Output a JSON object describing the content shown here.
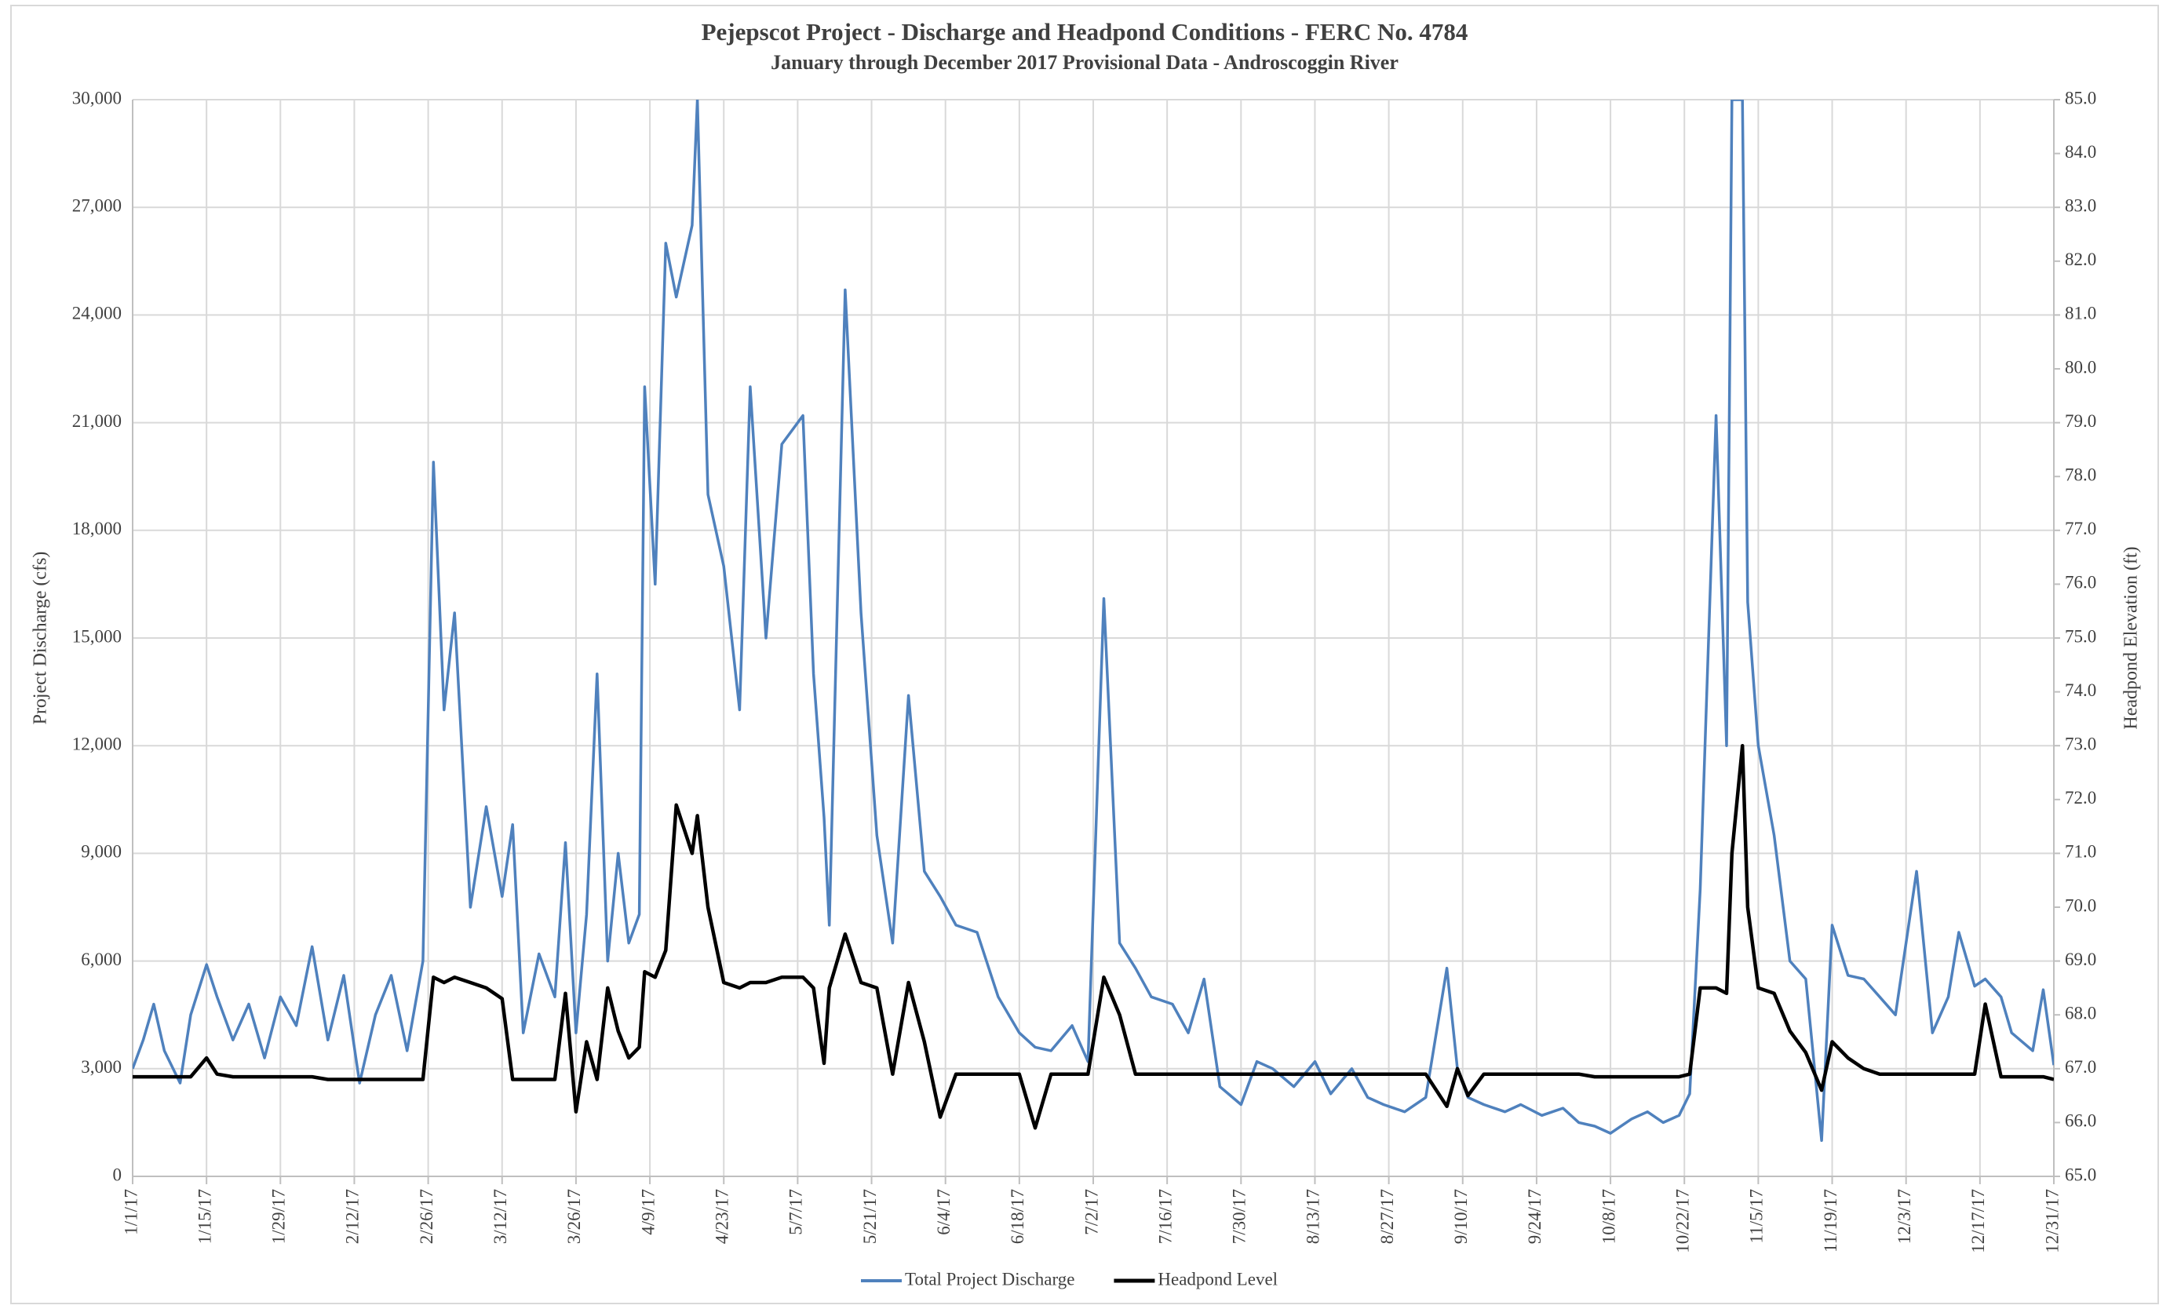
{
  "chart_data": {
    "type": "line",
    "title": "Pejepscot Project - Discharge and Headpond Conditions - FERC No. 4784",
    "subtitle": "January through December 2017 Provisional Data - Androscoggin River",
    "ylabel": "Project Discharge (cfs)",
    "y2label": "Headpond Elevation (ft)",
    "x": [
      "2017-01-01",
      "2017-01-03",
      "2017-01-05",
      "2017-01-07",
      "2017-01-10",
      "2017-01-12",
      "2017-01-15",
      "2017-01-17",
      "2017-01-20",
      "2017-01-23",
      "2017-01-26",
      "2017-01-29",
      "2017-02-01",
      "2017-02-04",
      "2017-02-07",
      "2017-02-10",
      "2017-02-13",
      "2017-02-16",
      "2017-02-19",
      "2017-02-22",
      "2017-02-25",
      "2017-02-27",
      "2017-03-01",
      "2017-03-03",
      "2017-03-06",
      "2017-03-09",
      "2017-03-12",
      "2017-03-14",
      "2017-03-16",
      "2017-03-19",
      "2017-03-22",
      "2017-03-24",
      "2017-03-26",
      "2017-03-28",
      "2017-03-30",
      "2017-04-01",
      "2017-04-03",
      "2017-04-05",
      "2017-04-07",
      "2017-04-08",
      "2017-04-10",
      "2017-04-12",
      "2017-04-14",
      "2017-04-17",
      "2017-04-18",
      "2017-04-20",
      "2017-04-23",
      "2017-04-26",
      "2017-04-28",
      "2017-05-01",
      "2017-05-04",
      "2017-05-08",
      "2017-05-10",
      "2017-05-12",
      "2017-05-13",
      "2017-05-16",
      "2017-05-19",
      "2017-05-22",
      "2017-05-25",
      "2017-05-28",
      "2017-05-31",
      "2017-06-03",
      "2017-06-06",
      "2017-06-10",
      "2017-06-14",
      "2017-06-18",
      "2017-06-21",
      "2017-06-24",
      "2017-06-28",
      "2017-07-01",
      "2017-07-04",
      "2017-07-07",
      "2017-07-10",
      "2017-07-13",
      "2017-07-17",
      "2017-07-20",
      "2017-07-23",
      "2017-07-26",
      "2017-07-30",
      "2017-08-02",
      "2017-08-05",
      "2017-08-09",
      "2017-08-13",
      "2017-08-16",
      "2017-08-20",
      "2017-08-23",
      "2017-08-26",
      "2017-08-30",
      "2017-09-03",
      "2017-09-07",
      "2017-09-09",
      "2017-09-11",
      "2017-09-14",
      "2017-09-18",
      "2017-09-21",
      "2017-09-25",
      "2017-09-29",
      "2017-10-02",
      "2017-10-05",
      "2017-10-08",
      "2017-10-12",
      "2017-10-15",
      "2017-10-18",
      "2017-10-21",
      "2017-10-23",
      "2017-10-25",
      "2017-10-28",
      "2017-10-30",
      "2017-10-31",
      "2017-11-02",
      "2017-11-03",
      "2017-11-05",
      "2017-11-08",
      "2017-11-11",
      "2017-11-14",
      "2017-11-17",
      "2017-11-19",
      "2017-11-22",
      "2017-11-25",
      "2017-11-28",
      "2017-12-01",
      "2017-12-05",
      "2017-12-08",
      "2017-12-11",
      "2017-12-13",
      "2017-12-16",
      "2017-12-18",
      "2017-12-21",
      "2017-12-23",
      "2017-12-27",
      "2017-12-29",
      "2017-12-31"
    ],
    "series": [
      {
        "name": "Total Project Discharge",
        "color": "#4f81bd",
        "axis": "y",
        "values": [
          3000,
          3800,
          4800,
          3500,
          2600,
          4500,
          5900,
          5000,
          3800,
          4800,
          3300,
          5000,
          4200,
          6400,
          3800,
          5600,
          2600,
          4500,
          5600,
          3500,
          6000,
          19900,
          13000,
          15700,
          7500,
          10300,
          7800,
          9800,
          4000,
          6200,
          5000,
          9300,
          4000,
          7300,
          14000,
          6000,
          9000,
          6500,
          7300,
          22000,
          16500,
          26000,
          24500,
          26500,
          30000,
          19000,
          17000,
          13000,
          22000,
          15000,
          20400,
          21200,
          14000,
          10000,
          7000,
          24700,
          15700,
          9500,
          6500,
          13400,
          8500,
          7800,
          7000,
          6800,
          5000,
          4000,
          3600,
          3500,
          4200,
          3200,
          16100,
          6500,
          5800,
          5000,
          4800,
          4000,
          5500,
          2500,
          2000,
          3200,
          3000,
          2500,
          3200,
          2300,
          3000,
          2200,
          2000,
          1800,
          2200,
          5800,
          3000,
          2200,
          2000,
          1800,
          2000,
          1700,
          1900,
          1500,
          1400,
          1200,
          1600,
          1800,
          1500,
          1700,
          2300,
          8000,
          21200,
          12000,
          30000,
          30000,
          16000,
          12000,
          9500,
          6000,
          5500,
          1000,
          7000,
          5600,
          5500,
          5000,
          4500,
          8500,
          4000,
          5000,
          6800,
          5300,
          5500,
          5000,
          4000,
          3500,
          5200,
          3100
        ]
      },
      {
        "name": "Headpond Level",
        "color": "#000000",
        "axis": "y2",
        "values": [
          66.85,
          66.85,
          66.85,
          66.85,
          66.85,
          66.85,
          67.2,
          66.9,
          66.85,
          66.85,
          66.85,
          66.85,
          66.85,
          66.85,
          66.8,
          66.8,
          66.8,
          66.8,
          66.8,
          66.8,
          66.8,
          68.7,
          68.6,
          68.7,
          68.6,
          68.5,
          68.3,
          66.8,
          66.8,
          66.8,
          66.8,
          68.4,
          66.2,
          67.5,
          66.8,
          68.5,
          67.7,
          67.2,
          67.4,
          68.8,
          68.7,
          69.2,
          71.9,
          71.0,
          71.7,
          70.0,
          68.6,
          68.5,
          68.6,
          68.6,
          68.7,
          68.7,
          68.5,
          67.1,
          68.5,
          69.5,
          68.6,
          68.5,
          66.9,
          68.6,
          67.5,
          66.1,
          66.9,
          66.9,
          66.9,
          66.9,
          65.9,
          66.9,
          66.9,
          66.9,
          68.7,
          68.0,
          66.9,
          66.9,
          66.9,
          66.9,
          66.9,
          66.9,
          66.9,
          66.9,
          66.9,
          66.9,
          66.9,
          66.9,
          66.9,
          66.9,
          66.9,
          66.9,
          66.9,
          66.3,
          67.0,
          66.5,
          66.9,
          66.9,
          66.9,
          66.9,
          66.9,
          66.9,
          66.85,
          66.85,
          66.85,
          66.85,
          66.85,
          66.85,
          66.9,
          68.5,
          68.5,
          68.4,
          71.0,
          73.0,
          70.0,
          68.5,
          68.4,
          67.7,
          67.3,
          66.6,
          67.5,
          67.2,
          67.0,
          66.9,
          66.9,
          66.9,
          66.9,
          66.9,
          66.9,
          66.9,
          68.2,
          66.85,
          66.85,
          66.85,
          66.85,
          66.8
        ]
      }
    ],
    "xlim": [
      "2017-01-01",
      "2017-12-31"
    ],
    "xticks": [
      {
        "value": "2017-01-01",
        "label": "1/1/17"
      },
      {
        "value": "2017-01-15",
        "label": "1/15/17"
      },
      {
        "value": "2017-01-29",
        "label": "1/29/17"
      },
      {
        "value": "2017-02-12",
        "label": "2/12/17"
      },
      {
        "value": "2017-02-26",
        "label": "2/26/17"
      },
      {
        "value": "2017-03-12",
        "label": "3/12/17"
      },
      {
        "value": "2017-03-26",
        "label": "3/26/17"
      },
      {
        "value": "2017-04-09",
        "label": "4/9/17"
      },
      {
        "value": "2017-04-23",
        "label": "4/23/17"
      },
      {
        "value": "2017-05-07",
        "label": "5/7/17"
      },
      {
        "value": "2017-05-21",
        "label": "5/21/17"
      },
      {
        "value": "2017-06-04",
        "label": "6/4/17"
      },
      {
        "value": "2017-06-18",
        "label": "6/18/17"
      },
      {
        "value": "2017-07-02",
        "label": "7/2/17"
      },
      {
        "value": "2017-07-16",
        "label": "7/16/17"
      },
      {
        "value": "2017-07-30",
        "label": "7/30/17"
      },
      {
        "value": "2017-08-13",
        "label": "8/13/17"
      },
      {
        "value": "2017-08-27",
        "label": "8/27/17"
      },
      {
        "value": "2017-09-10",
        "label": "9/10/17"
      },
      {
        "value": "2017-09-24",
        "label": "9/24/17"
      },
      {
        "value": "2017-10-08",
        "label": "10/8/17"
      },
      {
        "value": "2017-10-22",
        "label": "10/22/17"
      },
      {
        "value": "2017-11-05",
        "label": "11/5/17"
      },
      {
        "value": "2017-11-19",
        "label": "11/19/17"
      },
      {
        "value": "2017-12-03",
        "label": "12/3/17"
      },
      {
        "value": "2017-12-17",
        "label": "12/17/17"
      },
      {
        "value": "2017-12-31",
        "label": "12/31/17"
      }
    ],
    "ylim": [
      0,
      30000
    ],
    "yticks": [
      0,
      {
        "value": 3000,
        "label": "3,000"
      },
      {
        "value": 6000,
        "label": "6,000"
      },
      {
        "value": 9000,
        "label": "9,000"
      },
      {
        "value": 12000,
        "label": "12,000"
      },
      {
        "value": 15000,
        "label": "15,000"
      },
      {
        "value": 18000,
        "label": "18,000"
      },
      {
        "value": 21000,
        "label": "21,000"
      },
      {
        "value": 24000,
        "label": "24,000"
      },
      {
        "value": 27000,
        "label": "27,000"
      },
      {
        "value": 30000,
        "label": "30,000"
      }
    ],
    "y2lim": [
      65,
      85
    ],
    "y2ticks": [
      {
        "value": 65,
        "label": "65.0"
      },
      {
        "value": 66,
        "label": "66.0"
      },
      {
        "value": 67,
        "label": "67.0"
      },
      {
        "value": 68,
        "label": "68.0"
      },
      {
        "value": 69,
        "label": "69.0"
      },
      {
        "value": 70,
        "label": "70.0"
      },
      {
        "value": 71,
        "label": "71.0"
      },
      {
        "value": 72,
        "label": "72.0"
      },
      {
        "value": 73,
        "label": "73.0"
      },
      {
        "value": 74,
        "label": "74.0"
      },
      {
        "value": 75,
        "label": "75.0"
      },
      {
        "value": 76,
        "label": "76.0"
      },
      {
        "value": 77,
        "label": "77.0"
      },
      {
        "value": 78,
        "label": "78.0"
      },
      {
        "value": 79,
        "label": "79.0"
      },
      {
        "value": 80,
        "label": "80.0"
      },
      {
        "value": 81,
        "label": "81.0"
      },
      {
        "value": 82,
        "label": "82.0"
      },
      {
        "value": 83,
        "label": "83.0"
      },
      {
        "value": 84,
        "label": "84.0"
      },
      {
        "value": 85,
        "label": "85.0"
      }
    ],
    "grid": true,
    "legend": "bottom"
  }
}
